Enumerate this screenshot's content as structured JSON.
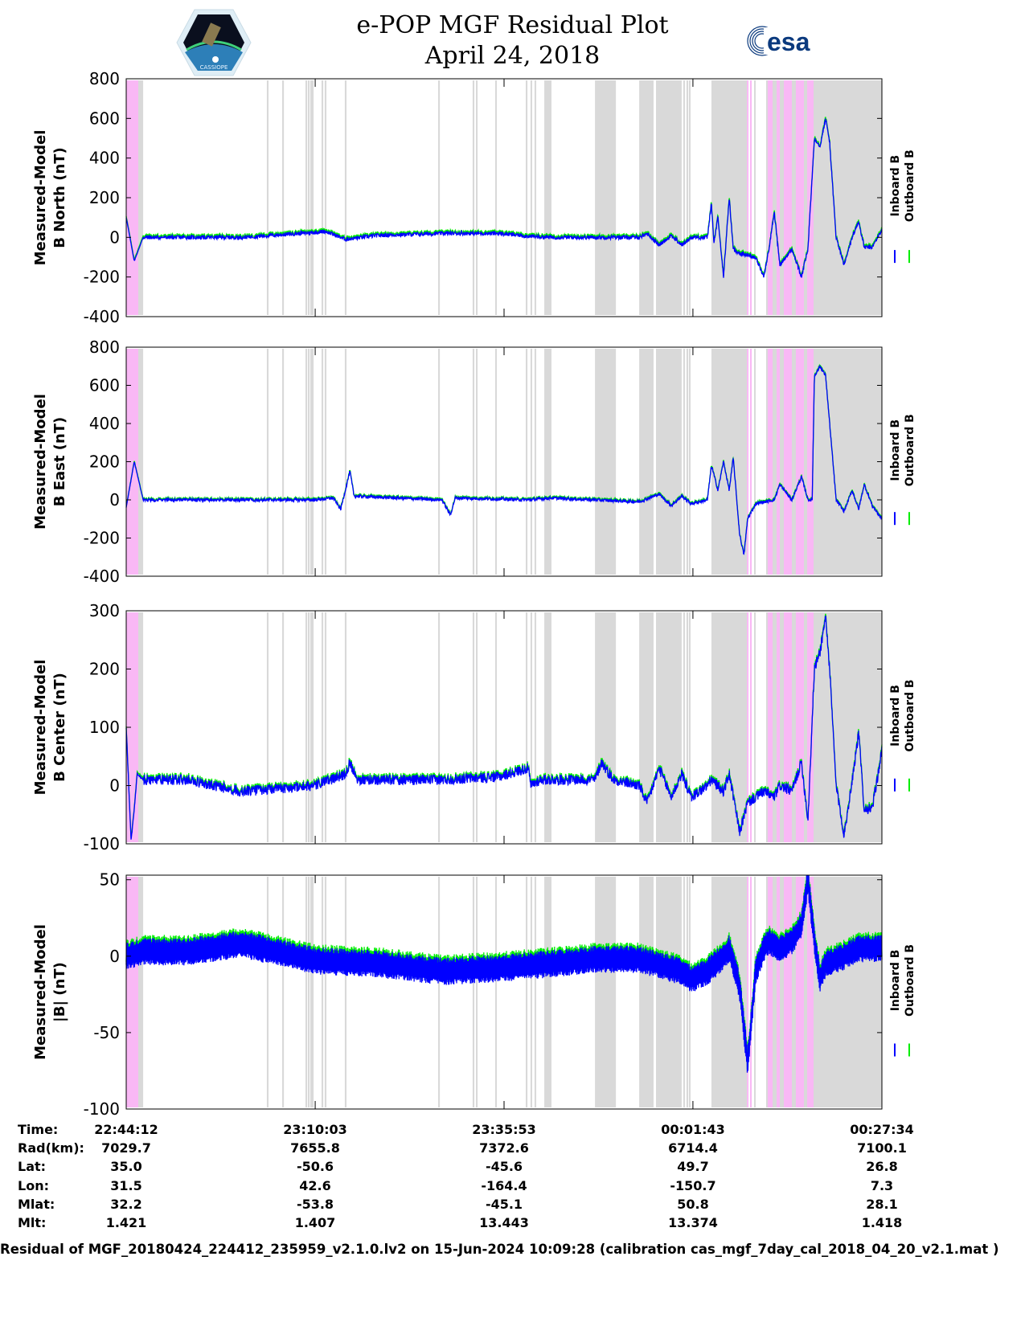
{
  "header": {
    "title": "e-POP MGF Residual Plot",
    "date": "April 24, 2018",
    "left_logo_text": "CASSIOPE",
    "right_logo_text": "esa"
  },
  "colors": {
    "inboard": "#0000ff",
    "outboard": "#00ee00",
    "gray_region": "#d9d9d9",
    "pink_region": "#f9b8f5"
  },
  "chart_data": {
    "type": "line",
    "x_unit": "seconds since 22:44:12",
    "xlim": [
      0,
      6202
    ],
    "x_ticks": [
      0,
      1551,
      3101,
      4651,
      6202
    ],
    "legend": {
      "placement": "right",
      "entries": [
        "Inboard B",
        "Outboard B"
      ]
    },
    "regions": {
      "gray": [
        [
          99,
          139
        ],
        [
          1154,
          1168
        ],
        [
          1280,
          1294
        ],
        [
          1471,
          1485
        ],
        [
          1491,
          1505
        ],
        [
          1511,
          1525
        ],
        [
          1524,
          1538
        ],
        [
          1603,
          1617
        ],
        [
          1629,
          1643
        ],
        [
          1794,
          1808
        ],
        [
          2560,
          2574
        ],
        [
          2843,
          2857
        ],
        [
          2870,
          2884
        ],
        [
          3028,
          3042
        ],
        [
          3279,
          3293
        ],
        [
          3318,
          3332
        ],
        [
          3351,
          3365
        ],
        [
          3431,
          3490
        ],
        [
          3847,
          4019
        ],
        [
          4210,
          4328
        ],
        [
          4348,
          4559
        ],
        [
          4572,
          4586
        ],
        [
          4598,
          4612
        ],
        [
          4618,
          4632
        ],
        [
          4803,
          5094
        ],
        [
          5153,
          5166
        ],
        [
          5252,
          6202
        ]
      ],
      "pink": [
        [
          0,
          99
        ],
        [
          5094,
          5107
        ],
        [
          5120,
          5133
        ],
        [
          5265,
          5305
        ],
        [
          5338,
          5364
        ],
        [
          5397,
          5463
        ],
        [
          5496,
          5562
        ],
        [
          5588,
          5641
        ]
      ]
    },
    "panels": [
      {
        "ylabel_line1": "Measured-Model",
        "ylabel_line2": "B North (nT)",
        "ylim": [
          -400,
          800
        ],
        "yticks": [
          "800",
          "600",
          "400",
          "200",
          "0",
          "-200",
          "-400"
        ],
        "ytick_values": [
          800,
          600,
          400,
          200,
          0,
          -200,
          -400
        ],
        "noise_nT": 10,
        "outboard_offset_nT": 8,
        "inboard": [
          [
            0,
            100
          ],
          [
            66,
            -120
          ],
          [
            139,
            0
          ],
          [
            944,
            0
          ],
          [
            1551,
            25
          ],
          [
            1636,
            30
          ],
          [
            1801,
            -10
          ],
          [
            2065,
            10
          ],
          [
            2593,
            20
          ],
          [
            3055,
            20
          ],
          [
            3319,
            5
          ],
          [
            3484,
            0
          ],
          [
            4210,
            0
          ],
          [
            4275,
            20
          ],
          [
            4374,
            -40
          ],
          [
            4473,
            10
          ],
          [
            4559,
            -40
          ],
          [
            4638,
            0
          ],
          [
            4770,
            0
          ],
          [
            4803,
            170
          ],
          [
            4823,
            -30
          ],
          [
            4856,
            100
          ],
          [
            4902,
            -200
          ],
          [
            4949,
            200
          ],
          [
            4982,
            -60
          ],
          [
            5034,
            -80
          ],
          [
            5166,
            -100
          ],
          [
            5232,
            -200
          ],
          [
            5278,
            -50
          ],
          [
            5318,
            130
          ],
          [
            5364,
            -140
          ],
          [
            5463,
            -60
          ],
          [
            5542,
            -200
          ],
          [
            5595,
            -60
          ],
          [
            5648,
            500
          ],
          [
            5694,
            460
          ],
          [
            5740,
            600
          ],
          [
            5773,
            480
          ],
          [
            5826,
            0
          ],
          [
            5892,
            -140
          ],
          [
            5958,
            0
          ],
          [
            6011,
            80
          ],
          [
            6057,
            -50
          ],
          [
            6123,
            -50
          ],
          [
            6202,
            40
          ]
        ]
      },
      {
        "ylabel_line1": "Measured-Model",
        "ylabel_line2": "B East (nT)",
        "ylim": [
          -400,
          800
        ],
        "yticks": [
          "800",
          "600",
          "400",
          "200",
          "0",
          "-200",
          "-400"
        ],
        "ytick_values": [
          800,
          600,
          400,
          200,
          0,
          -200,
          -400
        ],
        "noise_nT": 8,
        "outboard_offset_nT": 5,
        "inboard": [
          [
            0,
            -40
          ],
          [
            66,
            200
          ],
          [
            139,
            0
          ],
          [
            1551,
            0
          ],
          [
            1700,
            10
          ],
          [
            1760,
            -50
          ],
          [
            1836,
            150
          ],
          [
            1870,
            20
          ],
          [
            2593,
            0
          ],
          [
            2660,
            -80
          ],
          [
            2700,
            10
          ],
          [
            3300,
            0
          ],
          [
            3484,
            10
          ],
          [
            4210,
            -10
          ],
          [
            4374,
            30
          ],
          [
            4473,
            -30
          ],
          [
            4559,
            20
          ],
          [
            4638,
            -20
          ],
          [
            4770,
            0
          ],
          [
            4803,
            180
          ],
          [
            4856,
            50
          ],
          [
            4902,
            200
          ],
          [
            4949,
            50
          ],
          [
            4982,
            220
          ],
          [
            5034,
            -180
          ],
          [
            5070,
            -290
          ],
          [
            5100,
            -100
          ],
          [
            5166,
            -20
          ],
          [
            5318,
            0
          ],
          [
            5364,
            80
          ],
          [
            5463,
            0
          ],
          [
            5542,
            120
          ],
          [
            5595,
            0
          ],
          [
            5630,
            0
          ],
          [
            5648,
            650
          ],
          [
            5694,
            700
          ],
          [
            5740,
            650
          ],
          [
            5826,
            0
          ],
          [
            5892,
            -60
          ],
          [
            5958,
            50
          ],
          [
            6011,
            -50
          ],
          [
            6057,
            80
          ],
          [
            6123,
            -30
          ],
          [
            6202,
            -100
          ]
        ]
      },
      {
        "ylabel_line1": "Measured-Model",
        "ylabel_line2": "B Center (nT)",
        "ylim": [
          -100,
          300
        ],
        "yticks": [
          "300",
          "200",
          "100",
          "0",
          "-100"
        ],
        "ytick_values": [
          300,
          200,
          100,
          0,
          -100
        ],
        "noise_nT": 9,
        "outboard_offset_nT": 3,
        "inboard": [
          [
            0,
            100
          ],
          [
            40,
            -95
          ],
          [
            66,
            -40
          ],
          [
            90,
            20
          ],
          [
            139,
            10
          ],
          [
            500,
            10
          ],
          [
            944,
            -10
          ],
          [
            1551,
            0
          ],
          [
            1801,
            20
          ],
          [
            1836,
            40
          ],
          [
            1900,
            10
          ],
          [
            2593,
            10
          ],
          [
            3055,
            15
          ],
          [
            3300,
            30
          ],
          [
            3319,
            0
          ],
          [
            3400,
            10
          ],
          [
            3484,
            10
          ],
          [
            3847,
            10
          ],
          [
            3900,
            40
          ],
          [
            4000,
            10
          ],
          [
            4210,
            0
          ],
          [
            4275,
            -30
          ],
          [
            4374,
            30
          ],
          [
            4473,
            -20
          ],
          [
            4559,
            20
          ],
          [
            4638,
            -20
          ],
          [
            4770,
            0
          ],
          [
            4803,
            10
          ],
          [
            4902,
            -10
          ],
          [
            4949,
            20
          ],
          [
            5034,
            -80
          ],
          [
            5100,
            -30
          ],
          [
            5166,
            -20
          ],
          [
            5232,
            -10
          ],
          [
            5318,
            -20
          ],
          [
            5364,
            0
          ],
          [
            5463,
            -10
          ],
          [
            5542,
            40
          ],
          [
            5595,
            -60
          ],
          [
            5648,
            200
          ],
          [
            5694,
            230
          ],
          [
            5740,
            290
          ],
          [
            5773,
            200
          ],
          [
            5826,
            0
          ],
          [
            5892,
            -85
          ],
          [
            5958,
            10
          ],
          [
            6011,
            90
          ],
          [
            6057,
            -40
          ],
          [
            6123,
            -40
          ],
          [
            6202,
            60
          ]
        ]
      },
      {
        "ylabel_line1": "Measured-Model",
        "ylabel_line2": "|B| (nT)",
        "ylim": [
          -100,
          53
        ],
        "yticks": [
          "50",
          "0",
          "-50",
          "-100"
        ],
        "ytick_values": [
          50,
          0,
          -50,
          -100
        ],
        "noise_nT": 9,
        "outboard_offset_nT": 2,
        "inboard": [
          [
            0,
            0
          ],
          [
            139,
            3
          ],
          [
            500,
            3
          ],
          [
            944,
            8
          ],
          [
            1551,
            -3
          ],
          [
            2065,
            -5
          ],
          [
            2593,
            -10
          ],
          [
            3055,
            -8
          ],
          [
            3484,
            -5
          ],
          [
            3847,
            -2
          ],
          [
            4210,
            -2
          ],
          [
            4559,
            -10
          ],
          [
            4638,
            -15
          ],
          [
            4770,
            -10
          ],
          [
            4903,
            0
          ],
          [
            4949,
            5
          ],
          [
            5034,
            -20
          ],
          [
            5100,
            -70
          ],
          [
            5166,
            -10
          ],
          [
            5232,
            5
          ],
          [
            5278,
            10
          ],
          [
            5364,
            5
          ],
          [
            5463,
            10
          ],
          [
            5542,
            20
          ],
          [
            5595,
            50
          ],
          [
            5648,
            10
          ],
          [
            5694,
            -15
          ],
          [
            5740,
            -5
          ],
          [
            5892,
            0
          ],
          [
            6011,
            5
          ],
          [
            6202,
            5
          ]
        ]
      }
    ]
  },
  "table": {
    "labels": [
      "Time:",
      "Rad(km):",
      "Lat:",
      "Lon:",
      "Mlat:",
      "Mlt:"
    ],
    "columns": [
      [
        "22:44:12",
        "7029.7",
        "35.0",
        "31.5",
        "32.2",
        "1.421"
      ],
      [
        "23:10:03",
        "7655.8",
        "-50.6",
        "42.6",
        "-53.8",
        "1.407"
      ],
      [
        "23:35:53",
        "7372.6",
        "-45.6",
        "-164.4",
        "-45.1",
        "13.443"
      ],
      [
        "00:01:43",
        "6714.4",
        "49.7",
        "-150.7",
        "50.8",
        "13.374"
      ],
      [
        "00:27:34",
        "7100.1",
        "26.8",
        "7.3",
        "28.1",
        "1.418"
      ]
    ]
  },
  "footer": "Residual of MGF_20180424_224412_235959_v2.1.0.lv2 on 15-Jun-2024 10:09:28 (calibration cas_mgf_7day_cal_2018_04_20_v2.1.mat )"
}
